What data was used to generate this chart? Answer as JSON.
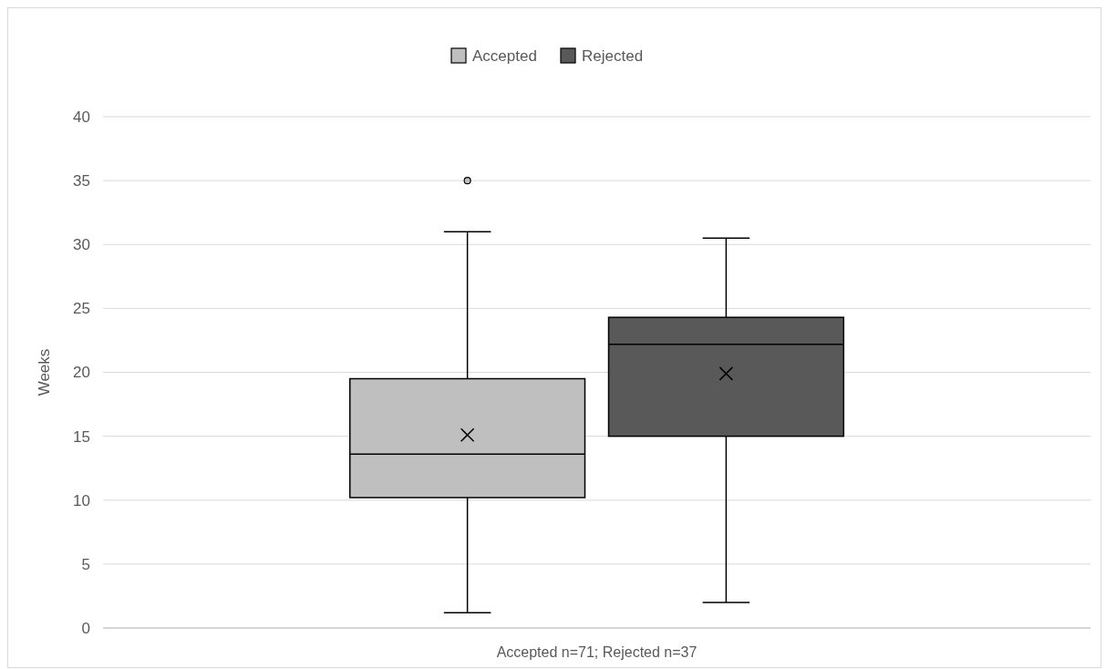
{
  "chart_data": {
    "type": "box",
    "xlabel": "Accepted n=71; Rejected n=37",
    "ylabel": "Weeks",
    "categories": [
      null
    ],
    "ylim": [
      0,
      40
    ],
    "yticks": [
      0,
      5,
      10,
      15,
      20,
      25,
      30,
      35,
      40
    ],
    "grid": "y",
    "legend": "top",
    "marker": "cross",
    "series": [
      {
        "name": "Accepted",
        "color": "#bfbfbf",
        "boxes": [
          {
            "low": 1.2,
            "q1": 10.2,
            "median": 13.6,
            "q3": 19.5,
            "high": 31,
            "mean": 15.1,
            "outliers": [
              35
            ]
          }
        ]
      },
      {
        "name": "Rejected",
        "color": "#595959",
        "boxes": [
          {
            "low": 2,
            "q1": 15,
            "median": 22.2,
            "q3": 24.3,
            "high": 30.5,
            "mean": 19.9
          }
        ]
      }
    ]
  }
}
